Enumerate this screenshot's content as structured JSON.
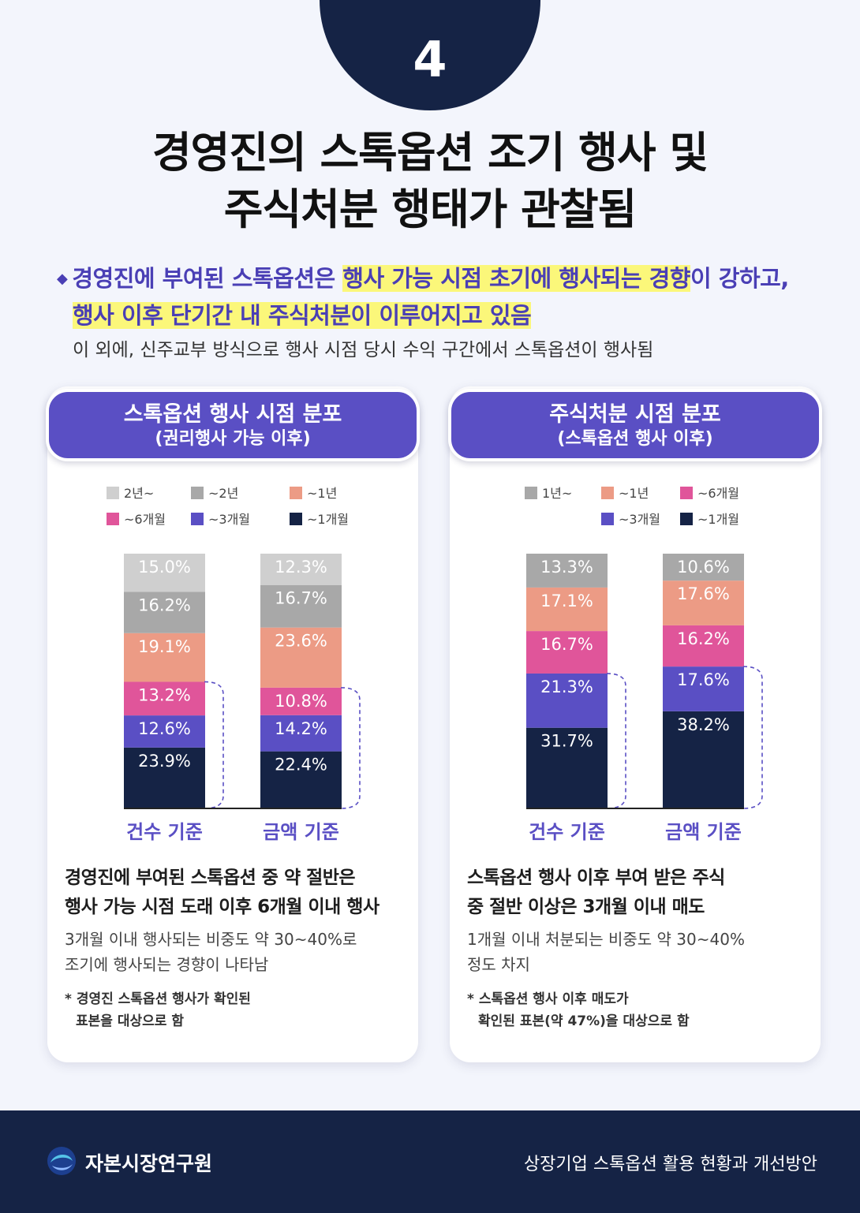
{
  "badge_number": "4",
  "title": {
    "line1": "경영진의 스톡옵션 조기 행사 및",
    "line2": "주식처분 행태가 관찰됨"
  },
  "lead": {
    "bullet": "◆",
    "l1_pre": "경영진에 부여된 스톡옵션은 ",
    "l1_hl": "행사 가능 시점 초기에 행사되는 경향",
    "l1_post": "이 강하고,",
    "l2_hl": "행사 이후 단기간 내 주식처분이 이루어지고 있음",
    "sub": "이 외에, 신주교부 방식으로 행사 시점 당시 수익 구간에서 스톡옵션이 행사됨"
  },
  "cards": [
    {
      "head1": "스톡옵션 행사 시점 분포",
      "head2": "(권리행사 가능 이후)",
      "summary_bold1": "경영진에 부여된 스톡옵션 중 약 절반은",
      "summary_bold2": "행사 가능 시점 도래 이후 6개월 이내 행사",
      "summary_text1": "3개월 이내 행사되는 비중도 약 30~40%로",
      "summary_text2": "조기에 행사되는 경향이 나타남",
      "note_star": "*",
      "note1": "경영진 스톡옵션 행사가 확인된",
      "note2": "표본을 대상으로 함"
    },
    {
      "head1": "주식처분 시점 분포",
      "head2": "(스톡옵션 행사 이후)",
      "summary_bold1": "스톡옵션 행사 이후 부여 받은 주식",
      "summary_bold2": "중 절반 이상은 3개월 이내 매도",
      "summary_text1": "1개월 이내 처분되는 비중도 약 30~40%",
      "summary_text2": "정도 차지",
      "note_star": "*",
      "note1": "스톡옵션 행사 이후 매도가",
      "note2": "확인된 표본(약 47%)을 대상으로 함"
    }
  ],
  "chart_data": [
    {
      "type": "bar",
      "stacked": true,
      "categories": [
        "건수 기준",
        "금액 기준"
      ],
      "series": [
        {
          "name": "~1개월",
          "color": "#152345",
          "values": [
            23.9,
            22.4
          ]
        },
        {
          "name": "~3개월",
          "color": "#5a4fc4",
          "values": [
            12.6,
            14.2
          ]
        },
        {
          "name": "~6개월",
          "color": "#e0559a",
          "values": [
            13.2,
            10.8
          ]
        },
        {
          "name": "~1년",
          "color": "#ec9b85",
          "values": [
            19.1,
            23.6
          ]
        },
        {
          "name": "~2년",
          "color": "#a8a8a8",
          "values": [
            16.2,
            16.7
          ]
        },
        {
          "name": "2년~",
          "color": "#cfcfcf",
          "values": [
            15.0,
            12.3
          ]
        }
      ],
      "legend_order": [
        "2년~",
        "~2년",
        "~1년",
        "~6개월",
        "~3개월",
        "~1개월"
      ],
      "bracket_series_count": 3,
      "ylim": [
        0,
        100
      ]
    },
    {
      "type": "bar",
      "stacked": true,
      "categories": [
        "건수 기준",
        "금액 기준"
      ],
      "series": [
        {
          "name": "~1개월",
          "color": "#152345",
          "values": [
            31.7,
            38.2
          ]
        },
        {
          "name": "~3개월",
          "color": "#5a4fc4",
          "values": [
            21.3,
            17.6
          ]
        },
        {
          "name": "~6개월",
          "color": "#e0559a",
          "values": [
            16.7,
            16.2
          ]
        },
        {
          "name": "~1년",
          "color": "#ec9b85",
          "values": [
            17.1,
            17.6
          ]
        },
        {
          "name": "1년~",
          "color": "#a8a8a8",
          "values": [
            13.3,
            10.6
          ]
        }
      ],
      "legend_order": [
        "1년~",
        "~1년",
        "~6개월",
        "~3개월",
        "~1개월"
      ],
      "bracket_series_count": 2,
      "ylim": [
        0,
        100
      ]
    }
  ],
  "footer": {
    "org": "자본시장연구원",
    "report": "상장기업 스톡옵션 활용 현황과 개선방안"
  }
}
